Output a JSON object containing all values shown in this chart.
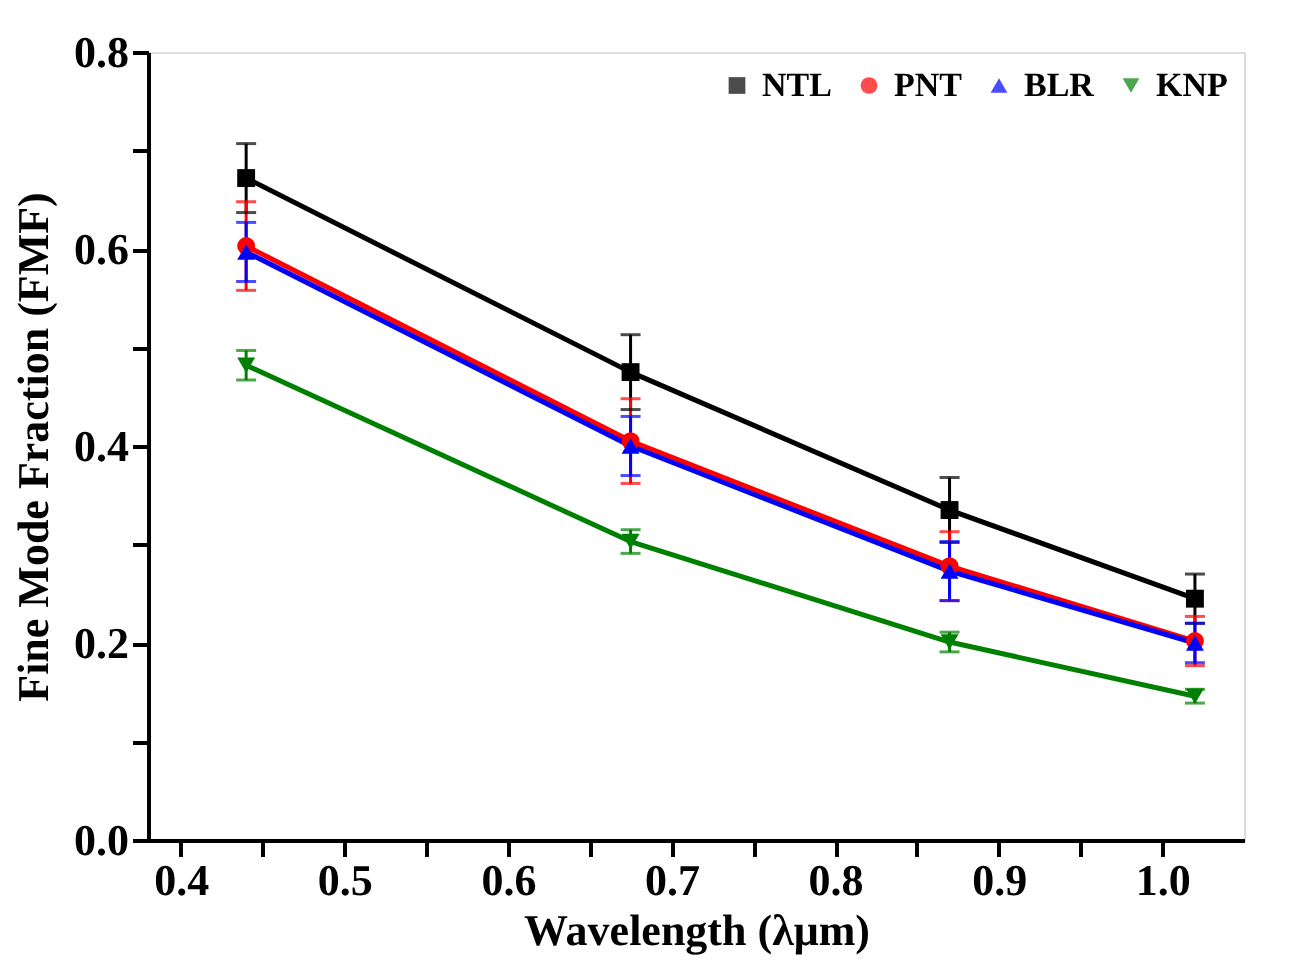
{
  "chart_data": {
    "type": "line",
    "xlabel": "Wavelength (λμm)",
    "ylabel": "Fine Mode Fraction (FMF)",
    "x": [
      0.44,
      0.675,
      0.87,
      1.02
    ],
    "series": [
      {
        "name": "NTL",
        "color": "#000000",
        "marker": "square",
        "values": [
          0.672,
          0.475,
          0.335,
          0.245
        ],
        "errors": [
          0.035,
          0.038,
          0.033,
          0.025
        ]
      },
      {
        "name": "PNT",
        "color": "#ff0000",
        "marker": "circle",
        "values": [
          0.603,
          0.405,
          0.278,
          0.202
        ],
        "errors": [
          0.045,
          0.043,
          0.035,
          0.025
        ]
      },
      {
        "name": "BLR",
        "color": "#0000ff",
        "marker": "triangle",
        "values": [
          0.597,
          0.4,
          0.273,
          0.2
        ],
        "errors": [
          0.03,
          0.03,
          0.03,
          0.02
        ]
      },
      {
        "name": "KNP",
        "color": "#008000",
        "marker": "triangle-down",
        "values": [
          0.482,
          0.303,
          0.201,
          0.146
        ],
        "errors": [
          0.015,
          0.012,
          0.01,
          0.007
        ]
      }
    ],
    "xlim": [
      0.38,
      1.05
    ],
    "xticks": [
      0.4,
      {
        "value": 0.45,
        "label": null
      },
      0.5,
      {
        "value": 0.55,
        "label": null
      },
      0.6,
      {
        "value": 0.65,
        "label": null
      },
      0.7,
      {
        "value": 0.75,
        "label": null
      },
      0.8,
      {
        "value": 0.85,
        "label": null
      },
      0.9,
      {
        "value": 0.95,
        "label": null
      },
      {
        "value": 1.0,
        "label": "1.0"
      }
    ],
    "ylim": [
      0,
      0.8
    ],
    "yticks": [
      {
        "value": 0.0,
        "label": "0.0"
      },
      {
        "value": 0.1,
        "label": null
      },
      0.2,
      {
        "value": 0.3,
        "label": null
      },
      0.4,
      {
        "value": 0.5,
        "label": null
      },
      0.6,
      {
        "value": 0.7,
        "label": null
      },
      0.8
    ],
    "legend": "top right",
    "grid": false,
    "line_style": "solid"
  }
}
